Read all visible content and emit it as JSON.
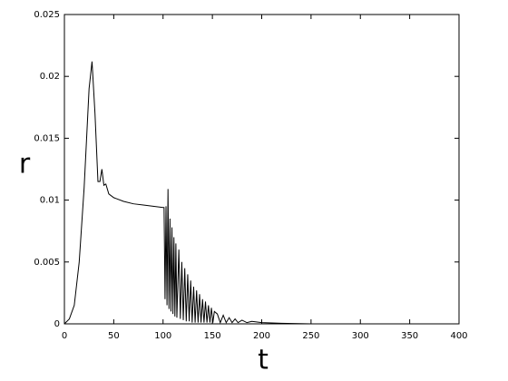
{
  "chart_data": {
    "type": "line",
    "x_label": "t",
    "y_label": "r",
    "xlim": [
      0,
      400
    ],
    "ylim": [
      0,
      0.025
    ],
    "xticks": [
      0,
      50,
      100,
      150,
      200,
      250,
      300,
      350,
      400
    ],
    "yticks": [
      0,
      0.005,
      0.01,
      0.015,
      0.02,
      0.025
    ],
    "color": "#000000",
    "x": [
      0,
      5,
      10,
      15,
      20,
      25,
      28,
      31,
      34,
      36,
      38,
      40,
      42,
      45,
      50,
      60,
      70,
      80,
      90,
      100,
      101,
      102,
      103,
      104,
      105,
      106,
      107,
      108,
      109,
      110,
      111,
      112,
      113,
      114,
      116,
      117.5,
      119,
      120.5,
      122,
      123.5,
      125,
      126.5,
      128,
      129.5,
      131,
      132.5,
      134,
      135.5,
      137,
      138.5,
      140,
      141.5,
      143,
      144.5,
      146,
      147.5,
      149,
      150.5,
      152,
      155,
      158,
      161,
      164,
      167,
      170,
      173,
      176,
      180,
      185,
      190,
      200,
      220,
      250,
      300,
      400
    ],
    "values": [
      0,
      0.0004,
      0.0015,
      0.005,
      0.011,
      0.019,
      0.0212,
      0.017,
      0.0115,
      0.0115,
      0.0125,
      0.0112,
      0.0113,
      0.0105,
      0.0102,
      0.0099,
      0.0097,
      0.0096,
      0.0095,
      0.0094,
      0.0094,
      0.002,
      0.0095,
      0.0015,
      0.0109,
      0.0012,
      0.0085,
      0.001,
      0.0078,
      0.0008,
      0.007,
      0.0006,
      0.0065,
      0.0005,
      0.006,
      0.0004,
      0.005,
      0.0003,
      0.0045,
      0.0002,
      0.004,
      0.0002,
      0.0035,
      0.0001,
      0.003,
      0.0001,
      0.0027,
      0.0001,
      0.0024,
      0.0001,
      0.002,
      0.0001,
      0.0018,
      0.0001,
      0.0015,
      0.0001,
      0.0013,
      0.0001,
      0.001,
      0.0008,
      0.0001,
      0.0007,
      0.0001,
      0.0005,
      0.0001,
      0.0004,
      0.0001,
      0.0003,
      0.0001,
      0.0002,
      0.0001,
      5e-05,
      0,
      0,
      0
    ]
  }
}
